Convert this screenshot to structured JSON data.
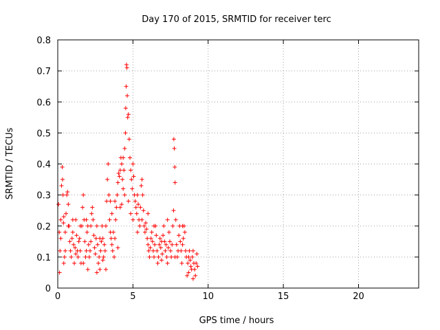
{
  "chart_data": {
    "type": "scatter",
    "title": "Day 170 of 2015, SRMTID for receiver terc",
    "xlabel": "GPS time / hours",
    "ylabel": "SRMTID / TECUs",
    "xlim": [
      0,
      24
    ],
    "ylim": [
      0,
      0.8
    ],
    "x_ticks": [
      0,
      5,
      10,
      15,
      20
    ],
    "x_tick_labels": [
      "0",
      "5",
      "10",
      "15",
      "20"
    ],
    "y_ticks": [
      0,
      0.1,
      0.2,
      0.3,
      0.4,
      0.5,
      0.6,
      0.7,
      0.8
    ],
    "y_tick_labels": [
      "0",
      "0.1",
      "0.2",
      "0.3",
      "0.4",
      "0.5",
      "0.6",
      "0.7",
      "0.8"
    ],
    "grid": true,
    "marker": "plus",
    "color": "#ff0000",
    "series": [
      {
        "name": "SRMTID",
        "points": [
          [
            0.05,
            0.27
          ],
          [
            0.1,
            0.18
          ],
          [
            0.12,
            0.05
          ],
          [
            0.15,
            0.12
          ],
          [
            0.2,
            0.22
          ],
          [
            0.25,
            0.33
          ],
          [
            0.3,
            0.39
          ],
          [
            0.32,
            0.35
          ],
          [
            0.35,
            0.3
          ],
          [
            0.38,
            0.21
          ],
          [
            0.4,
            0.23
          ],
          [
            0.45,
            0.1
          ],
          [
            0.5,
            0.18
          ],
          [
            0.55,
            0.24
          ],
          [
            0.6,
            0.3
          ],
          [
            0.65,
            0.31
          ],
          [
            0.7,
            0.27
          ],
          [
            0.75,
            0.2
          ],
          [
            0.8,
            0.15
          ],
          [
            0.85,
            0.12
          ],
          [
            0.9,
            0.1
          ],
          [
            0.95,
            0.16
          ],
          [
            1.0,
            0.18
          ],
          [
            1.05,
            0.14
          ],
          [
            1.1,
            0.08
          ],
          [
            1.15,
            0.13
          ],
          [
            1.2,
            0.22
          ],
          [
            1.25,
            0.17
          ],
          [
            1.3,
            0.12
          ],
          [
            1.35,
            0.1
          ],
          [
            1.4,
            0.15
          ],
          [
            1.45,
            0.16
          ],
          [
            1.5,
            0.12
          ],
          [
            1.55,
            0.08
          ],
          [
            1.6,
            0.2
          ],
          [
            1.65,
            0.26
          ],
          [
            1.7,
            0.3
          ],
          [
            1.75,
            0.22
          ],
          [
            1.8,
            0.15
          ],
          [
            1.85,
            0.1
          ],
          [
            1.9,
            0.12
          ],
          [
            1.95,
            0.18
          ],
          [
            2.0,
            0.2
          ],
          [
            2.05,
            0.14
          ],
          [
            2.1,
            0.1
          ],
          [
            2.15,
            0.12
          ],
          [
            2.2,
            0.15
          ],
          [
            2.25,
            0.24
          ],
          [
            2.3,
            0.26
          ],
          [
            2.35,
            0.22
          ],
          [
            2.4,
            0.17
          ],
          [
            2.45,
            0.13
          ],
          [
            2.5,
            0.11
          ],
          [
            2.55,
            0.16
          ],
          [
            2.6,
            0.2
          ],
          [
            2.65,
            0.14
          ],
          [
            2.7,
            0.08
          ],
          [
            2.75,
            0.1
          ],
          [
            2.8,
            0.06
          ],
          [
            2.85,
            0.12
          ],
          [
            2.9,
            0.15
          ],
          [
            2.95,
            0.2
          ],
          [
            3.0,
            0.16
          ],
          [
            3.05,
            0.1
          ],
          [
            3.1,
            0.14
          ],
          [
            3.15,
            0.12
          ],
          [
            3.2,
            0.2
          ],
          [
            3.25,
            0.28
          ],
          [
            3.3,
            0.35
          ],
          [
            3.35,
            0.4
          ],
          [
            3.4,
            0.3
          ],
          [
            3.45,
            0.22
          ],
          [
            3.5,
            0.18
          ],
          [
            3.55,
            0.16
          ],
          [
            3.6,
            0.14
          ],
          [
            3.65,
            0.12
          ],
          [
            3.7,
            0.18
          ],
          [
            3.75,
            0.1
          ],
          [
            3.8,
            0.16
          ],
          [
            3.85,
            0.22
          ],
          [
            3.9,
            0.26
          ],
          [
            3.95,
            0.3
          ],
          [
            4.0,
            0.34
          ],
          [
            4.05,
            0.37
          ],
          [
            4.1,
            0.36
          ],
          [
            4.15,
            0.38
          ],
          [
            4.2,
            0.42
          ],
          [
            4.25,
            0.4
          ],
          [
            4.3,
            0.35
          ],
          [
            4.35,
            0.32
          ],
          [
            4.4,
            0.38
          ],
          [
            4.45,
            0.45
          ],
          [
            4.5,
            0.5
          ],
          [
            4.52,
            0.58
          ],
          [
            4.55,
            0.65
          ],
          [
            4.57,
            0.72
          ],
          [
            4.6,
            0.71
          ],
          [
            4.62,
            0.62
          ],
          [
            4.65,
            0.55
          ],
          [
            4.7,
            0.56
          ],
          [
            4.75,
            0.48
          ],
          [
            4.8,
            0.42
          ],
          [
            4.85,
            0.38
          ],
          [
            4.9,
            0.35
          ],
          [
            4.95,
            0.32
          ],
          [
            5.0,
            0.4
          ],
          [
            5.05,
            0.36
          ],
          [
            5.1,
            0.3
          ],
          [
            5.15,
            0.28
          ],
          [
            5.2,
            0.26
          ],
          [
            5.25,
            0.24
          ],
          [
            5.3,
            0.3
          ],
          [
            5.35,
            0.27
          ],
          [
            5.4,
            0.22
          ],
          [
            5.45,
            0.2
          ],
          [
            5.5,
            0.26
          ],
          [
            5.55,
            0.33
          ],
          [
            5.6,
            0.35
          ],
          [
            5.65,
            0.3
          ],
          [
            5.7,
            0.25
          ],
          [
            5.75,
            0.2
          ],
          [
            5.8,
            0.18
          ],
          [
            5.85,
            0.21
          ],
          [
            5.9,
            0.19
          ],
          [
            5.95,
            0.16
          ],
          [
            6.0,
            0.14
          ],
          [
            6.05,
            0.12
          ],
          [
            6.1,
            0.1
          ],
          [
            6.15,
            0.13
          ],
          [
            6.2,
            0.16
          ],
          [
            6.25,
            0.18
          ],
          [
            6.3,
            0.15
          ],
          [
            6.35,
            0.12
          ],
          [
            6.4,
            0.1
          ],
          [
            6.45,
            0.14
          ],
          [
            6.5,
            0.2
          ],
          [
            6.55,
            0.17
          ],
          [
            6.6,
            0.12
          ],
          [
            6.65,
            0.08
          ],
          [
            6.7,
            0.1
          ],
          [
            6.75,
            0.14
          ],
          [
            6.8,
            0.16
          ],
          [
            6.85,
            0.13
          ],
          [
            6.9,
            0.09
          ],
          [
            6.95,
            0.11
          ],
          [
            7.0,
            0.17
          ],
          [
            7.05,
            0.2
          ],
          [
            7.1,
            0.15
          ],
          [
            7.15,
            0.12
          ],
          [
            7.2,
            0.14
          ],
          [
            7.25,
            0.1
          ],
          [
            7.3,
            0.08
          ],
          [
            7.35,
            0.13
          ],
          [
            7.4,
            0.18
          ],
          [
            7.45,
            0.15
          ],
          [
            7.5,
            0.12
          ],
          [
            7.55,
            0.1
          ],
          [
            7.6,
            0.14
          ],
          [
            7.65,
            0.2
          ],
          [
            7.7,
            0.25
          ],
          [
            7.72,
            0.48
          ],
          [
            7.75,
            0.45
          ],
          [
            7.78,
            0.39
          ],
          [
            7.8,
            0.34
          ],
          [
            7.85,
            0.22
          ],
          [
            7.9,
            0.14
          ],
          [
            7.95,
            0.1
          ],
          [
            8.0,
            0.12
          ],
          [
            8.05,
            0.17
          ],
          [
            8.1,
            0.2
          ],
          [
            8.15,
            0.15
          ],
          [
            8.2,
            0.12
          ],
          [
            8.25,
            0.08
          ],
          [
            8.3,
            0.14
          ],
          [
            8.35,
            0.16
          ],
          [
            8.4,
            0.2
          ],
          [
            8.45,
            0.18
          ],
          [
            8.5,
            0.12
          ],
          [
            8.55,
            0.1
          ],
          [
            8.6,
            0.04
          ],
          [
            8.65,
            0.08
          ],
          [
            8.7,
            0.1
          ],
          [
            8.75,
            0.12
          ],
          [
            8.8,
            0.09
          ],
          [
            8.85,
            0.07
          ],
          [
            8.9,
            0.06
          ],
          [
            8.95,
            0.1
          ],
          [
            9.0,
            0.12
          ],
          [
            9.05,
            0.08
          ],
          [
            9.1,
            0.06
          ],
          [
            9.15,
            0.04
          ],
          [
            9.2,
            0.08
          ],
          [
            9.25,
            0.11
          ],
          [
            9.3,
            0.07
          ],
          [
            4.35,
            0.42
          ],
          [
            4.25,
            0.27
          ],
          [
            4.0,
            0.13
          ],
          [
            3.6,
            0.24
          ],
          [
            3.0,
            0.09
          ],
          [
            2.6,
            0.05
          ],
          [
            2.0,
            0.06
          ],
          [
            1.5,
            0.2
          ],
          [
            1.0,
            0.22
          ],
          [
            0.5,
            0.12
          ],
          [
            0.2,
            0.16
          ],
          [
            0.4,
            0.08
          ],
          [
            0.7,
            0.2
          ],
          [
            1.2,
            0.11
          ],
          [
            1.7,
            0.08
          ],
          [
            2.2,
            0.2
          ],
          [
            2.8,
            0.16
          ],
          [
            3.2,
            0.06
          ],
          [
            3.8,
            0.28
          ],
          [
            4.15,
            0.26
          ],
          [
            4.7,
            0.28
          ],
          [
            5.3,
            0.18
          ],
          [
            5.6,
            0.22
          ],
          [
            6.0,
            0.24
          ],
          [
            6.4,
            0.2
          ],
          [
            6.9,
            0.15
          ],
          [
            7.3,
            0.22
          ],
          [
            7.8,
            0.1
          ],
          [
            8.3,
            0.2
          ],
          [
            8.7,
            0.05
          ],
          [
            9.0,
            0.03
          ],
          [
            4.85,
            0.24
          ],
          [
            5.0,
            0.22
          ],
          [
            4.45,
            0.3
          ],
          [
            3.5,
            0.28
          ],
          [
            1.9,
            0.22
          ]
        ]
      }
    ]
  }
}
